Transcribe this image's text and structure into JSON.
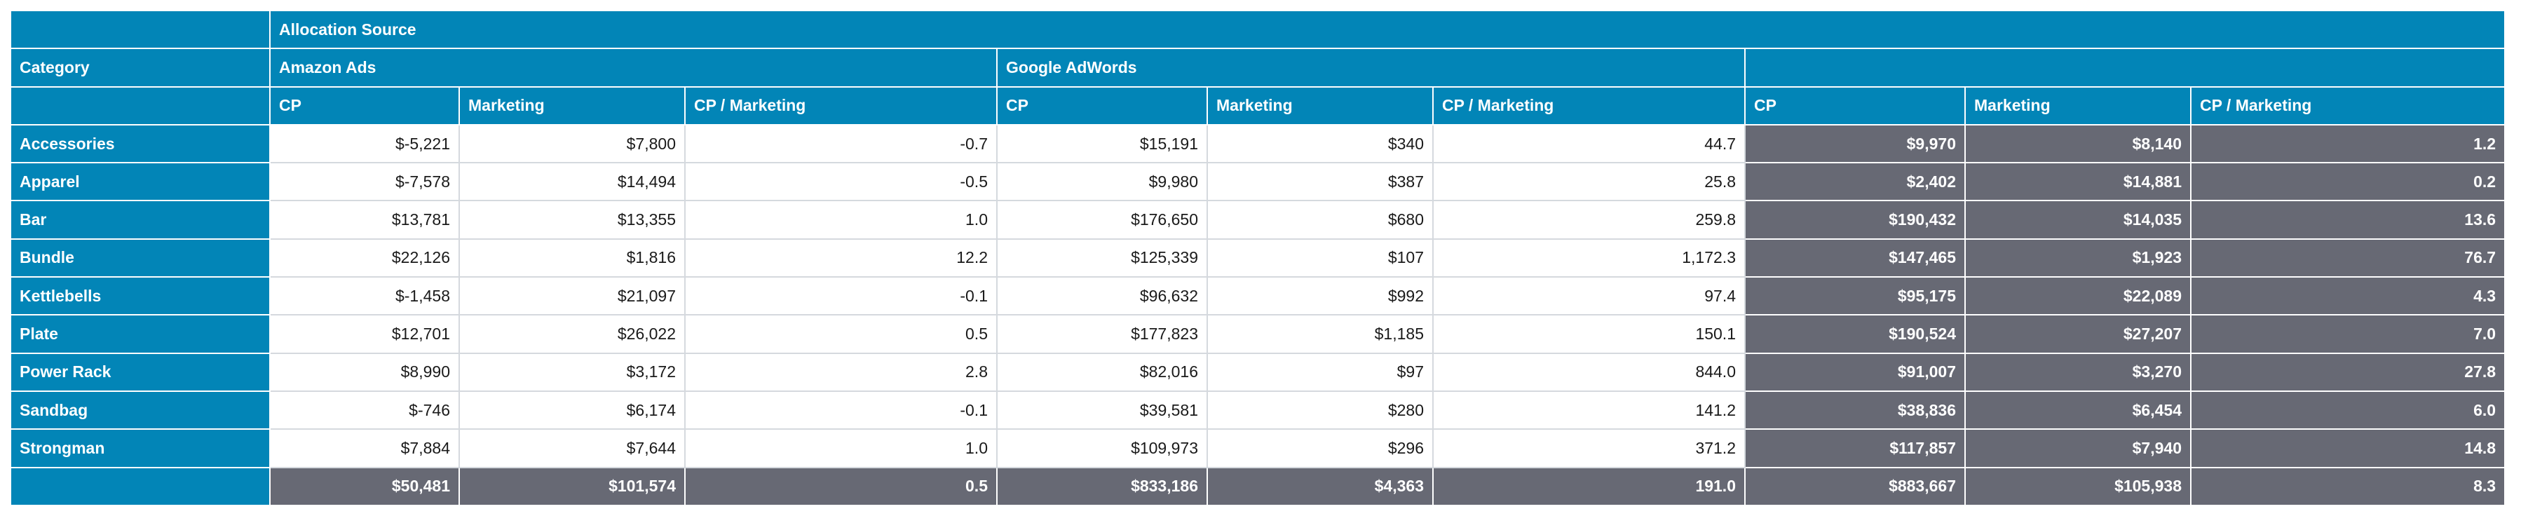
{
  "header": {
    "allocation_source": "Allocation Source",
    "category": "Category",
    "groups": [
      "Amazon Ads",
      "Google AdWords",
      ""
    ],
    "measures": [
      "CP",
      "Marketing",
      "CP / Marketing"
    ]
  },
  "rows": [
    {
      "category": "Accessories",
      "amazon": [
        "$-5,221",
        "$7,800",
        "-0.7"
      ],
      "google": [
        "$15,191",
        "$340",
        "44.7"
      ],
      "total": [
        "$9,970",
        "$8,140",
        "1.2"
      ]
    },
    {
      "category": "Apparel",
      "amazon": [
        "$-7,578",
        "$14,494",
        "-0.5"
      ],
      "google": [
        "$9,980",
        "$387",
        "25.8"
      ],
      "total": [
        "$2,402",
        "$14,881",
        "0.2"
      ]
    },
    {
      "category": "Bar",
      "amazon": [
        "$13,781",
        "$13,355",
        "1.0"
      ],
      "google": [
        "$176,650",
        "$680",
        "259.8"
      ],
      "total": [
        "$190,432",
        "$14,035",
        "13.6"
      ]
    },
    {
      "category": "Bundle",
      "amazon": [
        "$22,126",
        "$1,816",
        "12.2"
      ],
      "google": [
        "$125,339",
        "$107",
        "1,172.3"
      ],
      "total": [
        "$147,465",
        "$1,923",
        "76.7"
      ]
    },
    {
      "category": "Kettlebells",
      "amazon": [
        "$-1,458",
        "$21,097",
        "-0.1"
      ],
      "google": [
        "$96,632",
        "$992",
        "97.4"
      ],
      "total": [
        "$95,175",
        "$22,089",
        "4.3"
      ]
    },
    {
      "category": "Plate",
      "amazon": [
        "$12,701",
        "$26,022",
        "0.5"
      ],
      "google": [
        "$177,823",
        "$1,185",
        "150.1"
      ],
      "total": [
        "$190,524",
        "$27,207",
        "7.0"
      ]
    },
    {
      "category": "Power Rack",
      "amazon": [
        "$8,990",
        "$3,172",
        "2.8"
      ],
      "google": [
        "$82,016",
        "$97",
        "844.0"
      ],
      "total": [
        "$91,007",
        "$3,270",
        "27.8"
      ]
    },
    {
      "category": "Sandbag",
      "amazon": [
        "$-746",
        "$6,174",
        "-0.1"
      ],
      "google": [
        "$39,581",
        "$280",
        "141.2"
      ],
      "total": [
        "$38,836",
        "$6,454",
        "6.0"
      ]
    },
    {
      "category": "Strongman",
      "amazon": [
        "$7,884",
        "$7,644",
        "1.0"
      ],
      "google": [
        "$109,973",
        "$296",
        "371.2"
      ],
      "total": [
        "$117,857",
        "$7,940",
        "14.8"
      ]
    }
  ],
  "totals": {
    "amazon": [
      "$50,481",
      "$101,574",
      "0.5"
    ],
    "google": [
      "$833,186",
      "$4,363",
      "191.0"
    ],
    "total": [
      "$883,667",
      "$105,938",
      "8.3"
    ]
  },
  "colors": {
    "header_blue": "#0285b7",
    "total_gray": "#676974",
    "grid": "#d5d9de"
  }
}
